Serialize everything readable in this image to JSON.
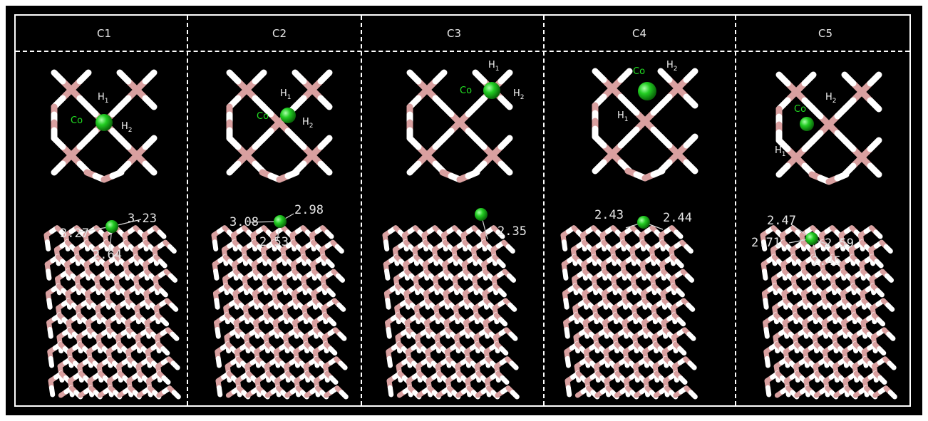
{
  "panels": [
    {
      "id": "C1",
      "top": {
        "co": "Co",
        "h1": "H",
        "h1_sub": "1",
        "h2": "H",
        "h2_sub": "2"
      },
      "distances": [
        "3.27",
        "3.23",
        "2.64"
      ]
    },
    {
      "id": "C2",
      "top": {
        "co": "Co",
        "h1": "H",
        "h1_sub": "1",
        "h2": "H",
        "h2_sub": "2"
      },
      "distances": [
        "3.08",
        "2.98",
        "2.53"
      ]
    },
    {
      "id": "C3",
      "top": {
        "co": "Co",
        "h1": "H",
        "h1_sub": "1",
        "h2": "H",
        "h2_sub": "2"
      },
      "distances": [
        "2.35"
      ]
    },
    {
      "id": "C4",
      "top": {
        "co": "Co",
        "h1": "H",
        "h1_sub": "1",
        "h2": "H",
        "h2_sub": "2"
      },
      "distances": [
        "2.43",
        "2.44"
      ]
    },
    {
      "id": "C5",
      "top": {
        "co": "Co",
        "h1": "H",
        "h1_sub": "1",
        "h2": "H",
        "h2_sub": "2"
      },
      "distances": [
        "2.47",
        "2.71",
        "2.59",
        "2.45"
      ]
    }
  ],
  "colors": {
    "background": "#000000",
    "boron": "#d9a0a0",
    "hydrogen": "#ffffff",
    "cobalt": "#22cc22",
    "co_label": "#22dd22",
    "text": "#e6e6e6"
  }
}
